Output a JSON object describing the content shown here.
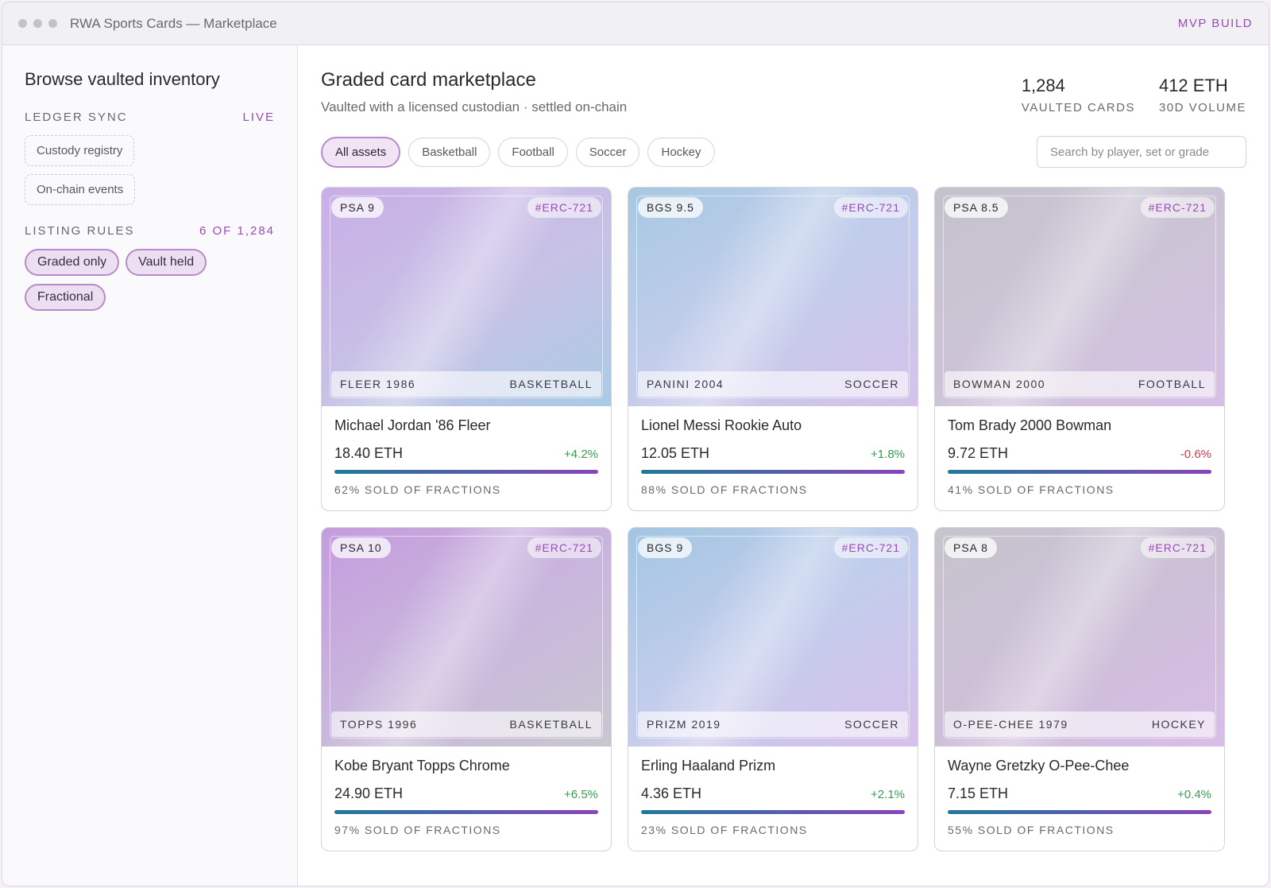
{
  "window": {
    "title": "RWA Sports Cards — Marketplace",
    "build_label": "MVP BUILD"
  },
  "sidebar": {
    "title": "Browse vaulted inventory",
    "ledger": {
      "label": "LEDGER SYNC",
      "status": "LIVE",
      "items": [
        "Custody registry",
        "On-chain events"
      ]
    },
    "rules": {
      "label": "LISTING RULES",
      "count": "6 OF 1,284",
      "tags": [
        "Graded only",
        "Vault held",
        "Fractional"
      ]
    }
  },
  "main": {
    "title": "Graded card marketplace",
    "subtitle": "Vaulted with a licensed custodian · settled on-chain",
    "stats": [
      {
        "value": "1,284",
        "label": "VAULTED CARDS"
      },
      {
        "value": "412 ETH",
        "label": "30D VOLUME"
      }
    ],
    "filters": [
      "All assets",
      "Basketball",
      "Football",
      "Soccer",
      "Hockey"
    ],
    "active_filter": "All assets",
    "search_placeholder": "Search by player, set or grade"
  },
  "cards": [
    {
      "grade": "PSA 9",
      "token": "#ERC-721",
      "set": "FLEER 1986",
      "sport": "BASKETBALL",
      "name": "Michael Jordan '86 Fleer",
      "price": "18.40 ETH",
      "change": "+4.2%",
      "trend": "up",
      "sold": "62% SOLD OF FRACTIONS",
      "sold_fraction": 0.62,
      "theme": "g-purple"
    },
    {
      "grade": "BGS 9.5",
      "token": "#ERC-721",
      "set": "PANINI 2004",
      "sport": "SOCCER",
      "name": "Lionel Messi Rookie Auto",
      "price": "12.05 ETH",
      "change": "+1.8%",
      "trend": "up",
      "sold": "88% SOLD OF FRACTIONS",
      "sold_fraction": 0.88,
      "theme": "g-blue"
    },
    {
      "grade": "PSA 8.5",
      "token": "#ERC-721",
      "set": "BOWMAN 2000",
      "sport": "FOOTBALL",
      "name": "Tom Brady 2000 Bowman",
      "price": "9.72 ETH",
      "change": "-0.6%",
      "trend": "down",
      "sold": "41% SOLD OF FRACTIONS",
      "sold_fraction": 0.41,
      "theme": "g-grey"
    },
    {
      "grade": "PSA 10",
      "token": "#ERC-721",
      "set": "TOPPS 1996",
      "sport": "BASKETBALL",
      "name": "Kobe Bryant Topps Chrome",
      "price": "24.90 ETH",
      "change": "+6.5%",
      "trend": "up",
      "sold": "97% SOLD OF FRACTIONS",
      "sold_fraction": 0.97,
      "theme": "g-purple2"
    },
    {
      "grade": "BGS 9",
      "token": "#ERC-721",
      "set": "PRIZM 2019",
      "sport": "SOCCER",
      "name": "Erling Haaland Prizm",
      "price": "4.36 ETH",
      "change": "+2.1%",
      "trend": "up",
      "sold": "23% SOLD OF FRACTIONS",
      "sold_fraction": 0.23,
      "theme": "g-blue2"
    },
    {
      "grade": "PSA 8",
      "token": "#ERC-721",
      "set": "O-PEE-CHEE 1979",
      "sport": "HOCKEY",
      "name": "Wayne Gretzky O-Pee-Chee",
      "price": "7.15 ETH",
      "change": "+0.4%",
      "trend": "up",
      "sold": "55% SOLD OF FRACTIONS",
      "sold_fraction": 0.55,
      "theme": "g-grey2"
    }
  ]
}
